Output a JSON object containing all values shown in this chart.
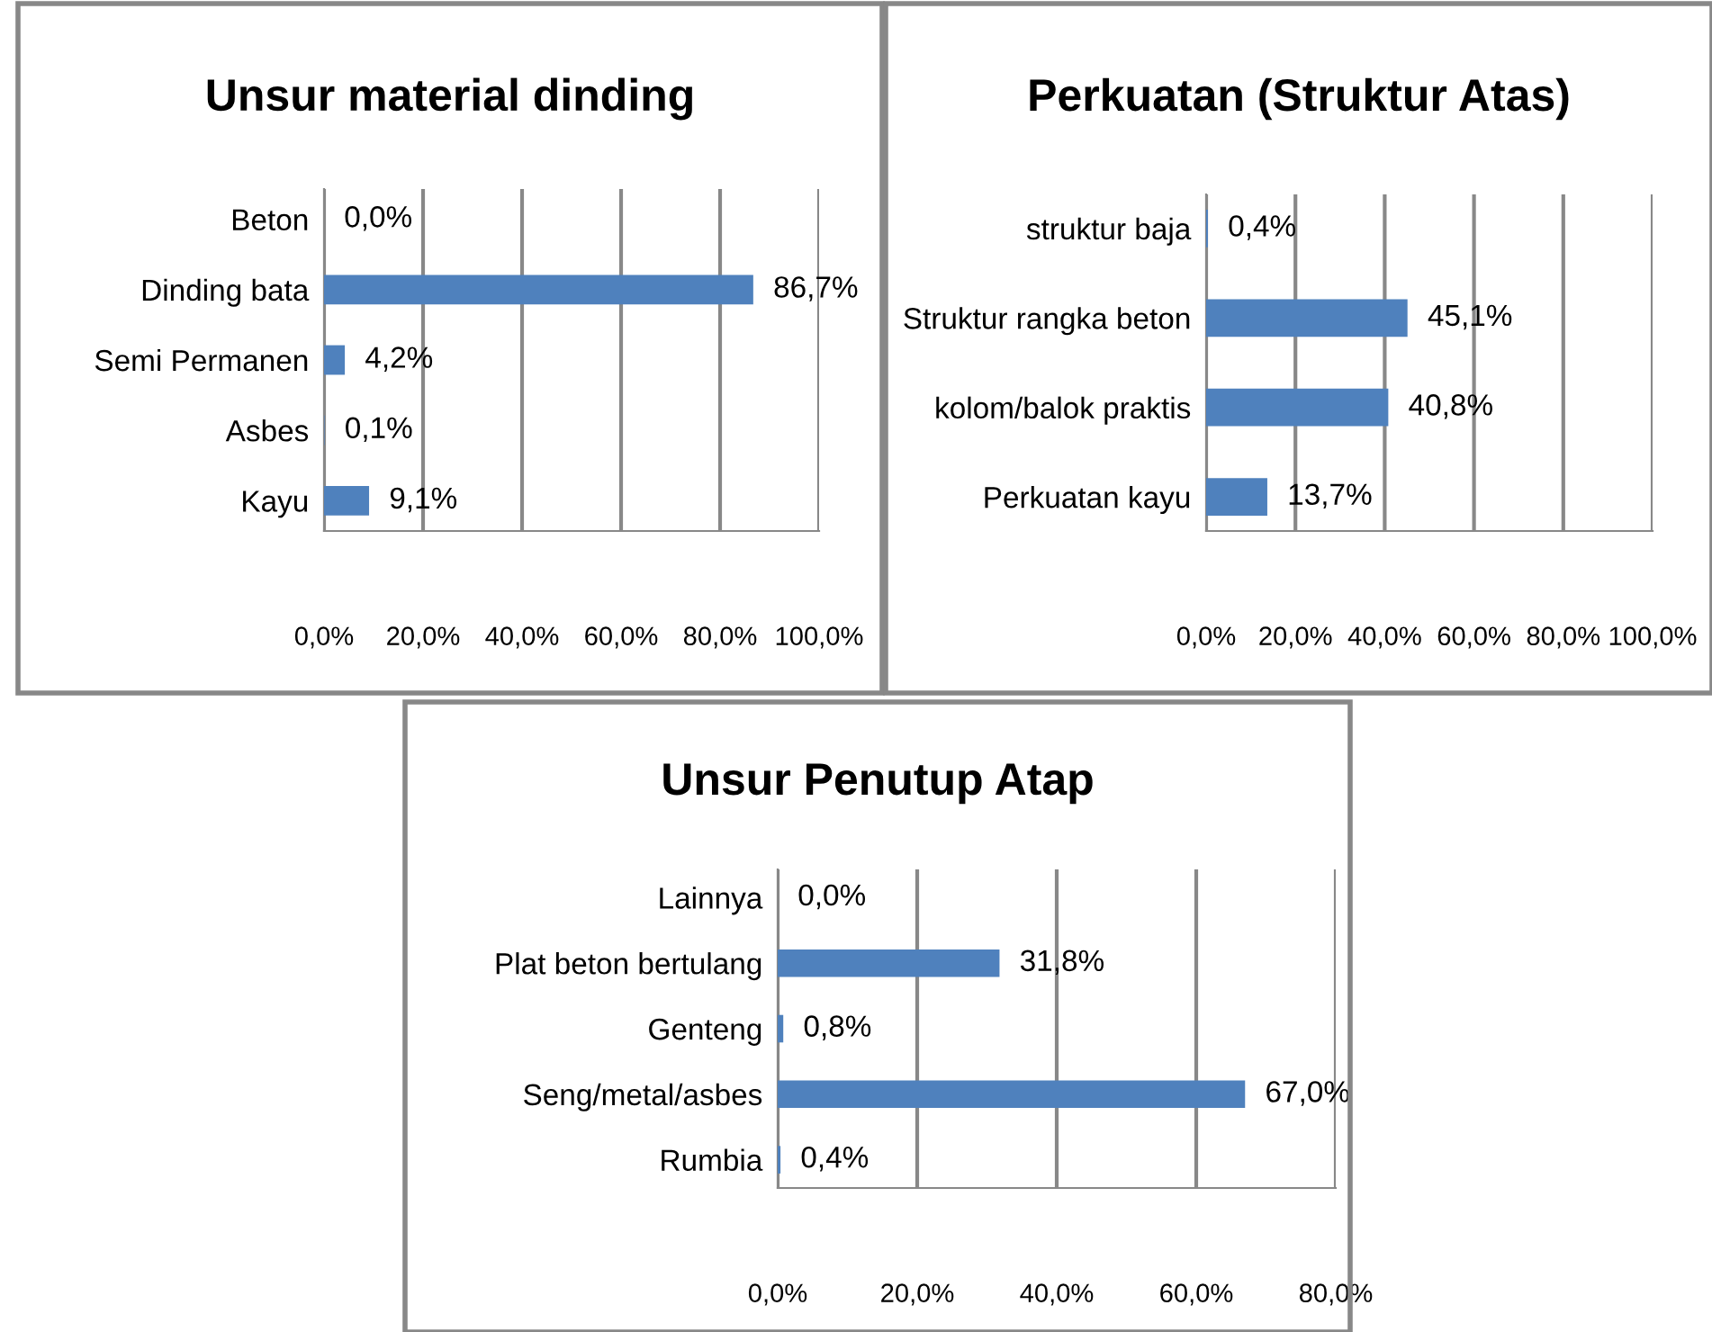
{
  "chart_data": [
    {
      "type": "bar",
      "orientation": "horizontal",
      "title": "Unsur material dinding",
      "categories": [
        "Beton",
        "Dinding bata",
        "Semi Permanen",
        "Asbes",
        "Kayu"
      ],
      "values": [
        0.0,
        86.7,
        4.2,
        0.1,
        9.1
      ],
      "value_labels": [
        "0,0%",
        "86,7%",
        "4,2%",
        "0,1%",
        "9,1%"
      ],
      "color": "#4f81bd",
      "xlim": [
        0,
        100
      ],
      "xticks": [
        {
          "value": 0,
          "label": "0,0%"
        },
        {
          "value": 20,
          "label": "20,0%"
        },
        {
          "value": 40,
          "label": "40,0%"
        },
        {
          "value": 60,
          "label": "60,0%"
        },
        {
          "value": 80,
          "label": "80,0%"
        },
        {
          "value": 100,
          "label": "100,0%"
        }
      ],
      "grid": "x",
      "legend": false
    },
    {
      "type": "bar",
      "orientation": "horizontal",
      "title": "Perkuatan (Struktur Atas)",
      "categories": [
        "struktur baja",
        "Struktur rangka beton",
        "kolom/balok praktis",
        "Perkuatan kayu"
      ],
      "values": [
        0.4,
        45.1,
        40.8,
        13.7
      ],
      "value_labels": [
        "0,4%",
        "45,1%",
        "40,8%",
        "13,7%"
      ],
      "color": "#4f81bd",
      "xlim": [
        0,
        100
      ],
      "xticks": [
        {
          "value": 0,
          "label": "0,0%"
        },
        {
          "value": 20,
          "label": "20,0%"
        },
        {
          "value": 40,
          "label": "40,0%"
        },
        {
          "value": 60,
          "label": "60,0%"
        },
        {
          "value": 80,
          "label": "80,0%"
        },
        {
          "value": 100,
          "label": "100,0%"
        }
      ],
      "grid": "x",
      "legend": false
    },
    {
      "type": "bar",
      "orientation": "horizontal",
      "title": "Unsur Penutup Atap",
      "categories": [
        "Lainnya",
        "Plat beton bertulang",
        "Genteng",
        "Seng/metal/asbes",
        "Rumbia"
      ],
      "values": [
        0.0,
        31.8,
        0.8,
        67.0,
        0.4
      ],
      "value_labels": [
        "0,0%",
        "31,8%",
        "0,8%",
        "67,0%",
        "0,4%"
      ],
      "color": "#4f81bd",
      "xlim": [
        0,
        80
      ],
      "xticks": [
        {
          "value": 0,
          "label": "0,0%"
        },
        {
          "value": 20,
          "label": "20,0%"
        },
        {
          "value": 40,
          "label": "40,0%"
        },
        {
          "value": 60,
          "label": "60,0%"
        },
        {
          "value": 80,
          "label": "80,0%"
        }
      ],
      "grid": "x",
      "legend": false
    }
  ]
}
